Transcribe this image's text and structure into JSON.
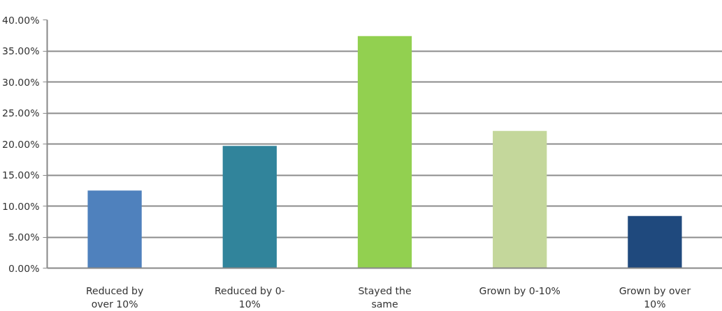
{
  "chart_data": {
    "type": "bar",
    "categories": [
      "Reduced by over 10%",
      "Reduced by 0-10%",
      "Stayed the same",
      "Grown by 0-10%",
      "Grown by over 10%"
    ],
    "values": [
      12.5,
      19.7,
      37.4,
      22.1,
      8.4
    ],
    "colors": [
      "#4f81bd",
      "#31849b",
      "#92d050",
      "#c4d79b",
      "#1f497d"
    ],
    "ylim": [
      0,
      40
    ],
    "yticks": [
      {
        "value": 0,
        "label": "0.00%"
      },
      {
        "value": 5,
        "label": "5.00%"
      },
      {
        "value": 10,
        "label": "10.00%"
      },
      {
        "value": 15,
        "label": "15.00%"
      },
      {
        "value": 20,
        "label": "20.00%"
      },
      {
        "value": 25,
        "label": "25.00%"
      },
      {
        "value": 30,
        "label": "30.00%"
      },
      {
        "value": 35,
        "label": "35.00%"
      },
      {
        "value": 40,
        "label": "40.00%"
      }
    ],
    "grid": "y"
  }
}
